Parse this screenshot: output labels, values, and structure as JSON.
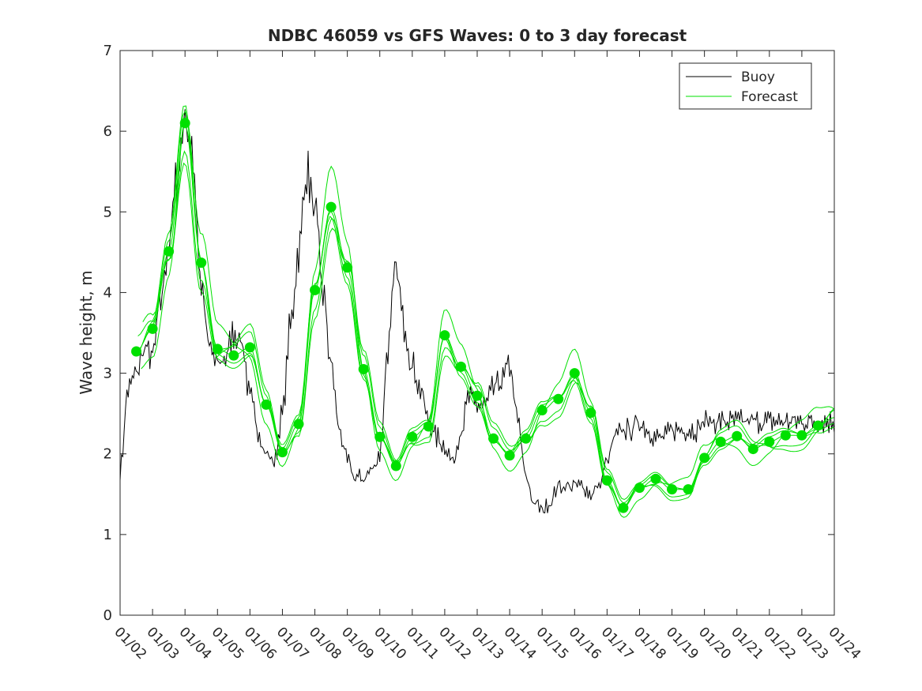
{
  "chart_data": {
    "type": "line",
    "title": "NDBC 46059 vs GFS Waves: 0 to 3 day forecast",
    "xlabel": "",
    "ylabel": "Wave height, m",
    "ylim": [
      0,
      7
    ],
    "xlim": [
      0,
      22
    ],
    "yticks": [
      0,
      1,
      2,
      3,
      4,
      5,
      6,
      7
    ],
    "xtick_labels": [
      "01/02",
      "01/03",
      "01/04",
      "01/05",
      "01/06",
      "01/07",
      "01/08",
      "01/09",
      "01/10",
      "01/11",
      "01/12",
      "01/13",
      "01/14",
      "01/15",
      "01/16",
      "01/17",
      "01/18",
      "01/19",
      "01/20",
      "01/21",
      "01/22",
      "01/23",
      "01/24"
    ],
    "x_units": "days since 01/02",
    "legend": {
      "placement": "top-right",
      "entries": [
        "Buoy",
        "Forecast"
      ]
    },
    "colors": {
      "buoy": "#000000",
      "forecast": "#00e000",
      "axes": "#262626"
    },
    "series": [
      {
        "name": "Buoy",
        "x": [
          0,
          0.25,
          0.5,
          0.75,
          1,
          1.25,
          1.5,
          1.75,
          2,
          2.25,
          2.5,
          2.75,
          3,
          3.25,
          3.5,
          3.75,
          4,
          4.25,
          4.5,
          4.75,
          5,
          5.25,
          5.5,
          5.75,
          6,
          6.25,
          6.5,
          6.75,
          7,
          7.25,
          7.5,
          7.75,
          8,
          8.25,
          8.5,
          8.75,
          9,
          9.25,
          9.5,
          9.75,
          10,
          10.25,
          10.5,
          10.75,
          11,
          11.25,
          11.5,
          11.75,
          12,
          12.25,
          12.5,
          12.75,
          13,
          13.25,
          13.5,
          13.75,
          14,
          14.25,
          14.5,
          14.75,
          15,
          15.25,
          15.5,
          15.75,
          16,
          16.25,
          16.5,
          16.75,
          17,
          17.25,
          17.5,
          17.75,
          18,
          18.25,
          18.5,
          18.75,
          19,
          19.25,
          19.5,
          19.75,
          20,
          20.25,
          20.5,
          20.75,
          21,
          21.25,
          21.5,
          21.75,
          22
        ],
        "values": [
          1.8,
          2.8,
          3.0,
          3.3,
          3.2,
          3.9,
          4.6,
          5.4,
          6.2,
          5.6,
          4.1,
          3.3,
          3.1,
          3.2,
          3.5,
          3.4,
          2.7,
          2.3,
          2.0,
          1.9,
          2.5,
          3.6,
          4.5,
          5.5,
          5.0,
          4.0,
          3.1,
          2.3,
          1.9,
          1.7,
          1.7,
          1.8,
          2.0,
          3.3,
          4.3,
          3.6,
          3.1,
          2.8,
          2.4,
          2.2,
          2.1,
          1.9,
          2.3,
          2.7,
          2.6,
          2.6,
          2.8,
          2.9,
          3.1,
          2.4,
          1.7,
          1.4,
          1.3,
          1.4,
          1.6,
          1.6,
          1.6,
          1.6,
          1.5,
          1.6,
          1.9,
          2.2,
          2.3,
          2.3,
          2.4,
          2.3,
          2.2,
          2.2,
          2.3,
          2.3,
          2.3,
          2.3,
          2.4,
          2.4,
          2.4,
          2.4,
          2.4,
          2.4,
          2.4,
          2.4,
          2.4,
          2.4,
          2.4,
          2.4,
          2.4,
          2.4,
          2.4,
          2.4,
          2.4
        ]
      },
      {
        "name": "Forecast",
        "x": [
          0.5,
          1,
          1.5,
          2,
          2.5,
          3,
          3.5,
          4,
          4.5,
          5,
          5.5,
          6,
          6.5,
          7,
          7.5,
          8,
          8.5,
          9,
          9.5,
          10,
          10.5,
          11,
          11.5,
          12,
          12.5,
          13,
          13.5,
          14,
          14.5,
          15,
          15.5,
          16,
          16.5,
          17,
          17.5,
          18,
          18.5,
          19,
          19.5,
          20,
          20.5,
          21,
          21.5,
          22
        ],
        "values": [
          3.27,
          3.55,
          4.51,
          6.1,
          4.37,
          3.3,
          3.22,
          3.32,
          2.61,
          2.02,
          2.37,
          4.03,
          5.06,
          4.31,
          3.05,
          2.21,
          1.85,
          2.21,
          2.34,
          3.47,
          3.08,
          2.72,
          2.19,
          1.98,
          2.19,
          2.54,
          2.68,
          3.0,
          2.51,
          1.67,
          1.33,
          1.58,
          1.69,
          1.56,
          1.56,
          1.95,
          2.15,
          2.22,
          2.06,
          2.15,
          2.23,
          2.23,
          2.35,
          2.45
        ]
      }
    ]
  }
}
